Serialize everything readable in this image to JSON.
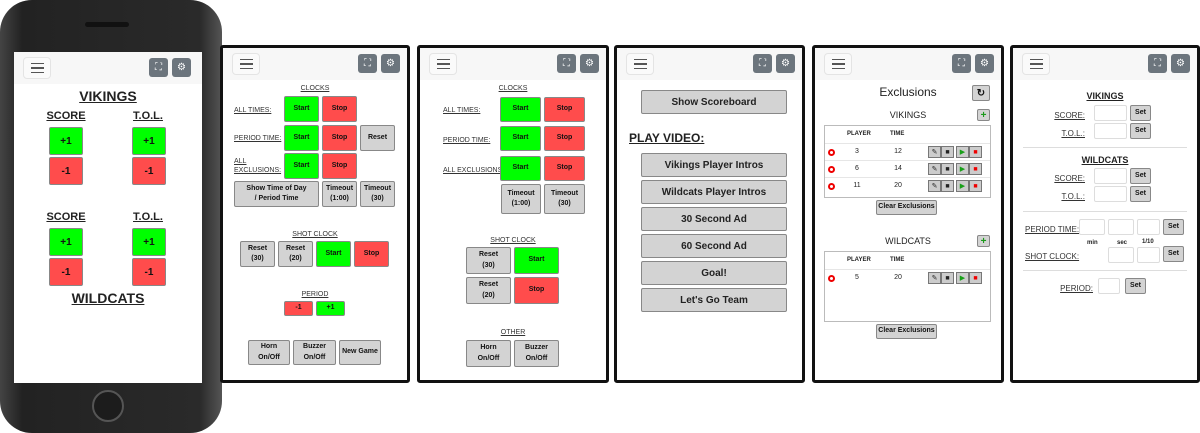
{
  "colors": {
    "start": "#00ff00",
    "stop": "#ff4c4c",
    "neutral": "#d3d3d3",
    "toolbar_button": "#6c757d"
  },
  "icons": {
    "menu": "hamburger-icon",
    "fullscreen": "fullscreen-icon",
    "settings": "gear-icon",
    "refresh": "refresh-icon",
    "add": "plus-icon",
    "edit": "pencil-icon",
    "delete": "trash-icon",
    "play": "play-icon",
    "stop": "stop-icon",
    "status": "red-circle-icon"
  },
  "phone": {
    "team1": "VIKINGS",
    "team2": "WILDCATS",
    "score": "SCORE",
    "tol": "T.O.L.",
    "plus": "+1",
    "minus": "-1"
  },
  "clocks": {
    "title": "CLOCKS",
    "all_times": "ALL TIMES:",
    "period_time": "PERIOD TIME:",
    "all_exclusions": "ALL EXCLUSIONS:",
    "start": "Start",
    "stop": "Stop",
    "reset": "Reset",
    "show_time": "Show Time of Day / Period Time",
    "timeout_60": "Timeout (1:00)",
    "timeout_30": "Timeout (30)",
    "shot_clock": "SHOT CLOCK",
    "reset_30": "Reset (30)",
    "reset_20": "Reset (20)",
    "period": "PERIOD",
    "minus": "-1",
    "plus": "+1",
    "horn": "Horn On/Off",
    "buzzer": "Buzzer On/Off",
    "new_game": "New Game",
    "other": "OTHER"
  },
  "video": {
    "show_scoreboard": "Show Scoreboard",
    "play_video": "PLAY VIDEO:",
    "items": [
      "Vikings Player Intros",
      "Wildcats Player Intros",
      "30 Second Ad",
      "60 Second Ad",
      "Goal!",
      "Let's Go Team"
    ]
  },
  "exclusions": {
    "title": "Exclusions",
    "col_player": "PLAYER",
    "col_time": "TIME",
    "clear": "Clear Exclusions",
    "teams": [
      {
        "name": "VIKINGS",
        "rows": [
          {
            "player": "3",
            "time": "12"
          },
          {
            "player": "6",
            "time": "14"
          },
          {
            "player": "11",
            "time": "20"
          }
        ]
      },
      {
        "name": "WILDCATS",
        "rows": [
          {
            "player": "5",
            "time": "20"
          }
        ]
      }
    ]
  },
  "settings": {
    "team1": "VIKINGS",
    "team2": "WILDCATS",
    "score": "SCORE:",
    "tol": "T.O.L.:",
    "set": "Set",
    "period_time": "PERIOD TIME:",
    "shot_clock": "SHOT CLOCK:",
    "period": "PERIOD:",
    "min": "min",
    "sec": "sec",
    "tenth": "1/10"
  }
}
